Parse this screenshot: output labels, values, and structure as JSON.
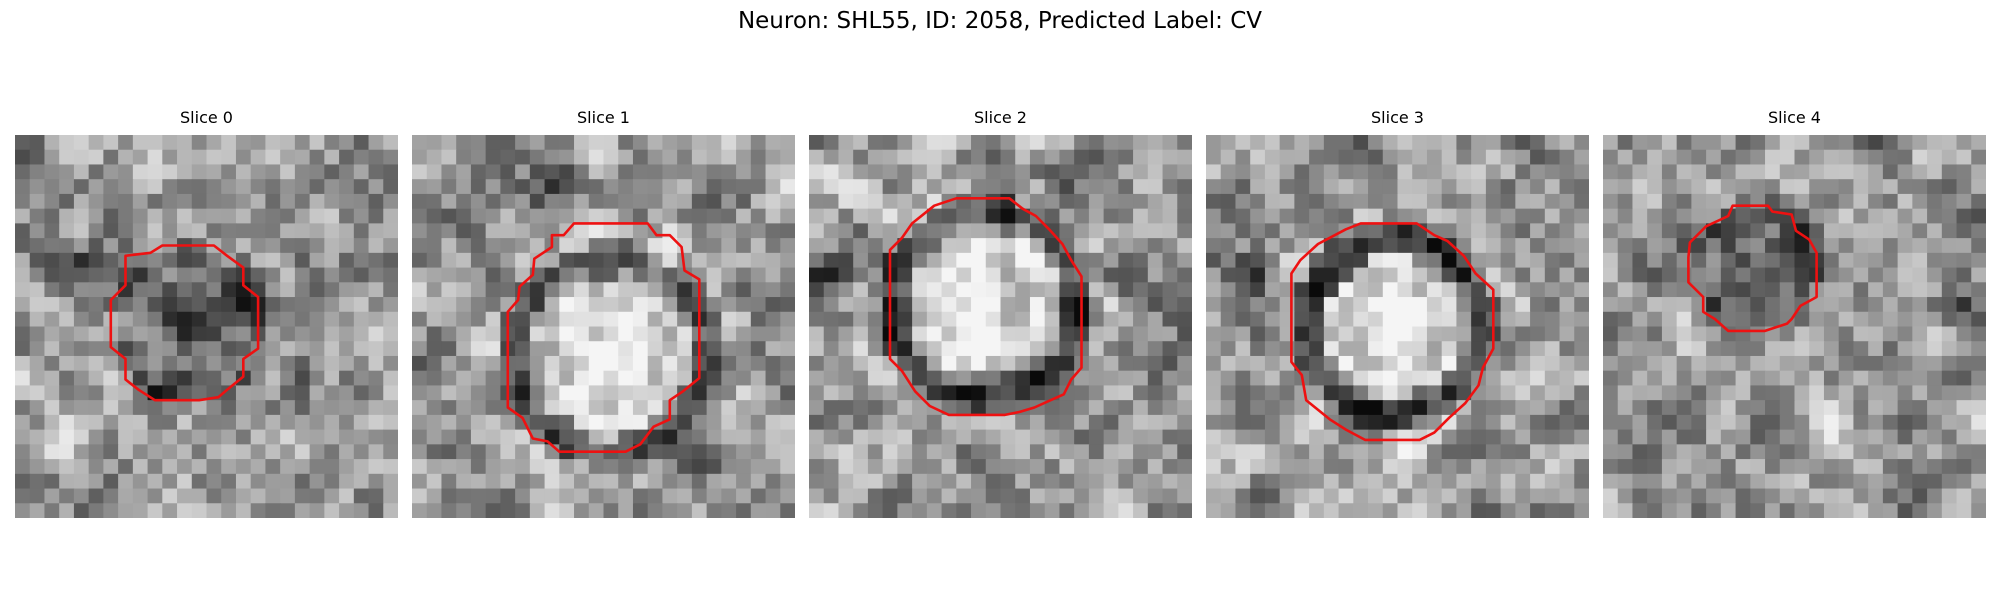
{
  "figure": {
    "title": "Neuron: SHL55, ID: 2058, Predicted Label: CV",
    "colors": {
      "contour": "#ee1111",
      "colormap": "gray"
    }
  },
  "slices": [
    {
      "title": "Slice 0"
    },
    {
      "title": "Slice 1"
    },
    {
      "title": "Slice 2"
    },
    {
      "title": "Slice 3"
    },
    {
      "title": "Slice 4"
    }
  ]
}
